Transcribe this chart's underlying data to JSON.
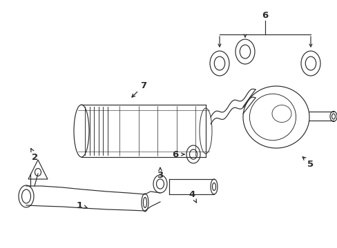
{
  "bg_color": "#ffffff",
  "line_color": "#2a2a2a",
  "figsize": [
    4.89,
    3.6
  ],
  "dpi": 100,
  "lw": 0.85
}
